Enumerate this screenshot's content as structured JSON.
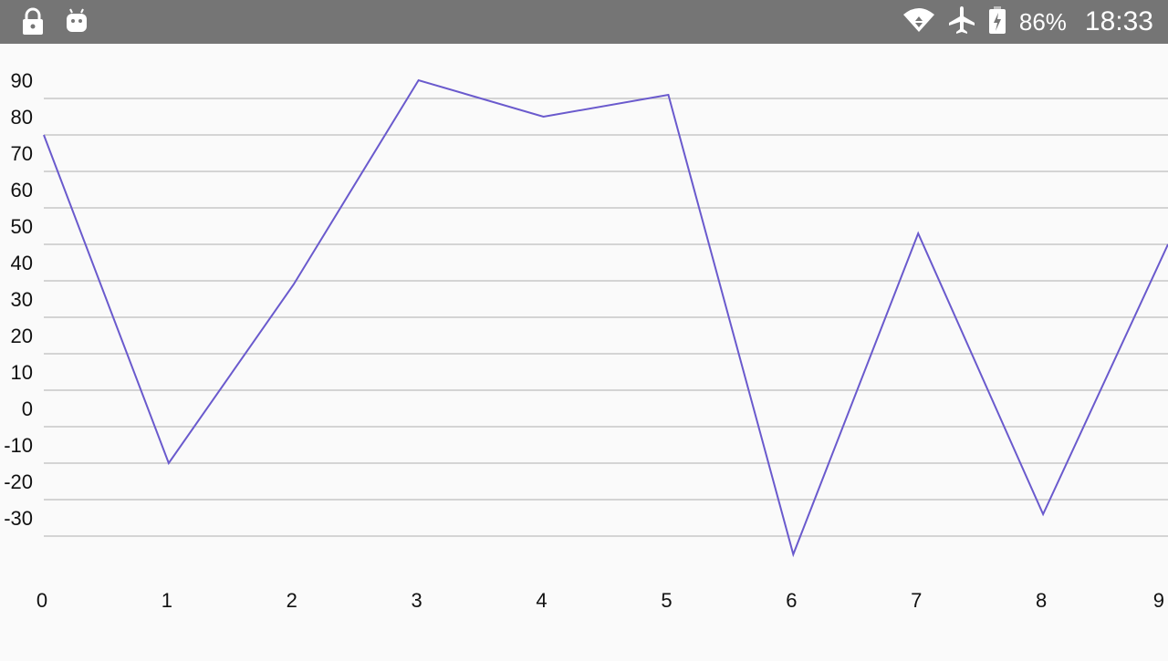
{
  "status_bar": {
    "left_icons": [
      "lock-icon",
      "android-icon"
    ],
    "right_icons": [
      "wifi-icon",
      "airplane-mode-icon",
      "battery-charging-icon"
    ],
    "battery": "86%",
    "time": "18:33"
  },
  "chart_data": {
    "type": "line",
    "x": [
      0,
      1,
      2,
      3,
      4,
      5,
      6,
      7,
      8,
      9
    ],
    "series": [
      {
        "values": [
          80,
          -10,
          39,
          95,
          85,
          91,
          -35,
          53,
          -24,
          50
        ],
        "color": "#6a5acd"
      }
    ],
    "x_ticks": [
      "0",
      "1",
      "2",
      "3",
      "4",
      "5",
      "6",
      "7",
      "8",
      "9"
    ],
    "y_ticks": [
      "90",
      "80",
      "70",
      "60",
      "50",
      "40",
      "30",
      "20",
      "10",
      "0",
      "-10",
      "-20",
      "-30"
    ],
    "y_tick_values": [
      90,
      80,
      70,
      60,
      50,
      40,
      30,
      20,
      10,
      0,
      -10,
      -20,
      -30
    ],
    "xlim": [
      0,
      9
    ],
    "ylim": [
      -38,
      100
    ],
    "grid": true,
    "gridline_color": "#c8c8c8",
    "title": "",
    "xlabel": "",
    "ylabel": ""
  }
}
